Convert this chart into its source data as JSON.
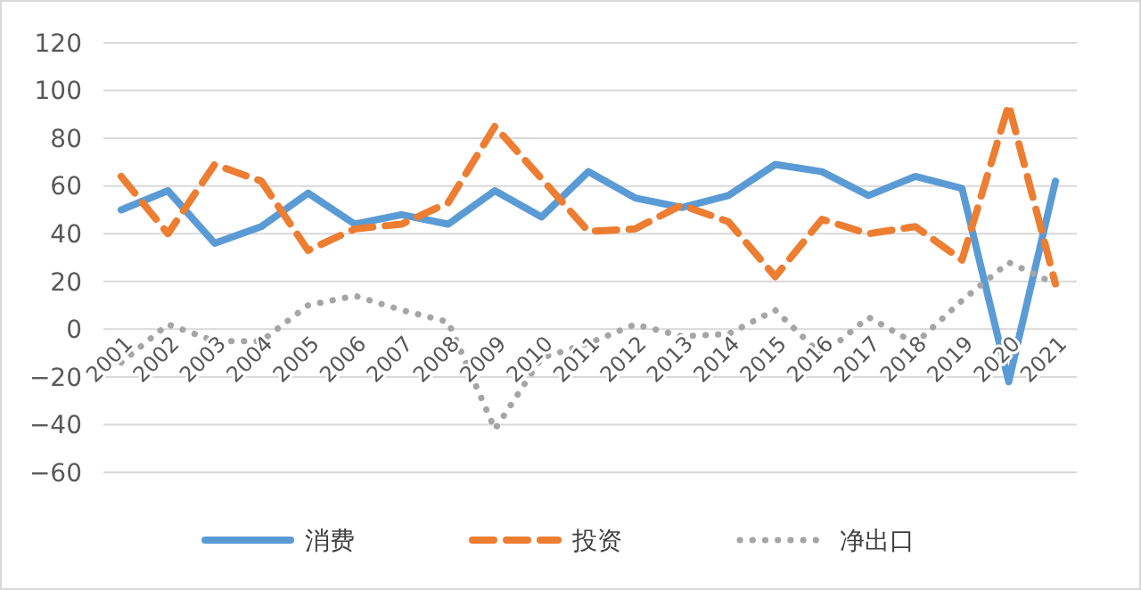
{
  "chart_data": {
    "type": "line",
    "categories": [
      "2001",
      "2002",
      "2003",
      "2004",
      "2005",
      "2006",
      "2007",
      "2008",
      "2009",
      "2010",
      "2011",
      "2012",
      "2013",
      "2014",
      "2015",
      "2016",
      "2017",
      "2018",
      "2019",
      "2020",
      "2021"
    ],
    "series": [
      {
        "name": "消费",
        "color": "#5b9bd5",
        "line_style": "solid",
        "values": [
          50,
          58,
          36,
          43,
          57,
          44,
          48,
          44,
          58,
          47,
          66,
          55,
          51,
          56,
          69,
          66,
          56,
          64,
          59,
          -22,
          62
        ]
      },
      {
        "name": "投资",
        "color": "#ed7d31",
        "line_style": "dashed",
        "values": [
          64,
          40,
          69,
          62,
          33,
          42,
          44,
          53,
          85,
          63,
          41,
          42,
          52,
          45,
          22,
          46,
          40,
          43,
          29,
          94,
          19
        ]
      },
      {
        "name": "净出口",
        "color": "#a5a5a5",
        "line_style": "dotted",
        "values": [
          -14,
          2,
          -5,
          -5,
          10,
          14,
          8,
          3,
          -42,
          -12,
          -6,
          2,
          -3,
          -2,
          8,
          -11,
          5,
          -6,
          12,
          28,
          19
        ]
      }
    ],
    "ylim": [
      -60,
      120
    ],
    "yticks": [
      -60,
      -40,
      -20,
      0,
      20,
      40,
      60,
      80,
      100,
      120
    ],
    "grid": "y",
    "legend": "bottom"
  }
}
